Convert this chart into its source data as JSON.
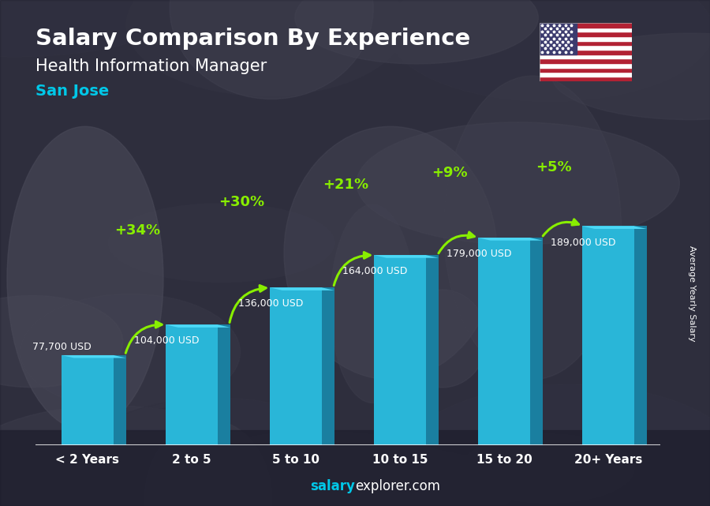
{
  "title_line1": "Salary Comparison By Experience",
  "title_line2": "Health Information Manager",
  "city": "San Jose",
  "categories": [
    "< 2 Years",
    "2 to 5",
    "5 to 10",
    "10 to 15",
    "15 to 20",
    "20+ Years"
  ],
  "values": [
    77700,
    104000,
    136000,
    164000,
    179000,
    189000
  ],
  "labels": [
    "77,700 USD",
    "104,000 USD",
    "136,000 USD",
    "164,000 USD",
    "179,000 USD",
    "189,000 USD"
  ],
  "pct_labels": [
    "+34%",
    "+30%",
    "+21%",
    "+9%",
    "+5%"
  ],
  "bar_color_front": "#29b6d8",
  "bar_color_right": "#1a7fa0",
  "bar_color_top": "#4dd8f5",
  "background_color": "#3a3a4a",
  "text_color_white": "#ffffff",
  "text_color_cyan": "#00c8e8",
  "text_color_green": "#88ee00",
  "ylabel": "Average Yearly Salary",
  "footer_bold": "salary",
  "footer_regular": "explorer.com",
  "ylim": [
    0,
    240000
  ],
  "bar_width": 0.5,
  "bar_3d_depth": 0.12
}
